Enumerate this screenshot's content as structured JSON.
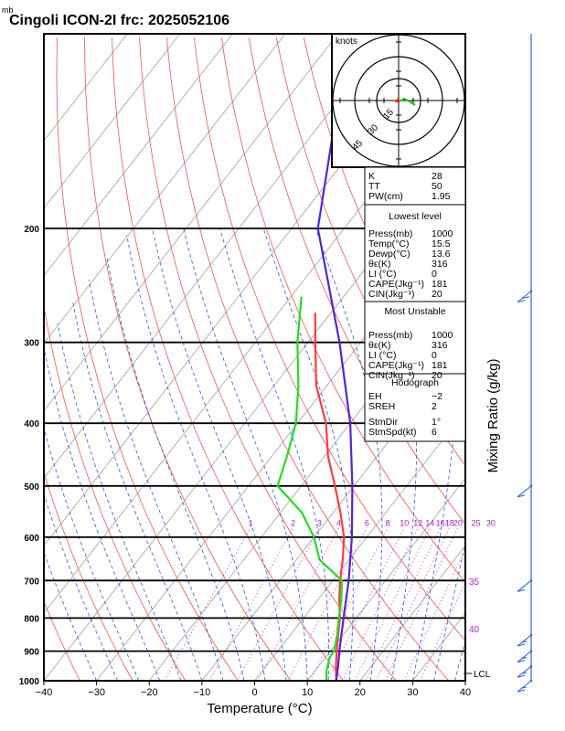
{
  "header": {
    "unit_label": "mb",
    "title": "Cingoli ICON-2I frc: 2025052106"
  },
  "chart_data": {
    "type": "skew-t",
    "title": "Cingoli ICON-2I frc: 2025052106",
    "xlabel": "Temperature (°C)",
    "ylabel_right": "Mixing Ratio (g/kg)",
    "xlim": [
      -40,
      40
    ],
    "x_ticks": [
      "−40",
      "−30",
      "−20",
      "−10",
      "0",
      "10",
      "20",
      "30",
      "40"
    ],
    "p_levels": [
      1000,
      900,
      800,
      700,
      600,
      500,
      400,
      300,
      200
    ],
    "p_labels": [
      "1000",
      "900",
      "800",
      "700",
      "600",
      "500",
      "400",
      "300",
      "200"
    ],
    "mixing_ratio_labels": [
      "1",
      "2",
      "3",
      "4",
      "6",
      "8",
      "10",
      "12",
      "14",
      "16",
      "18",
      "20",
      "25",
      "30"
    ],
    "height_labels": [
      "35",
      "40"
    ],
    "lcl_label": "LCL",
    "series": [
      {
        "name": "Temperature",
        "color": "#ff3c3c",
        "points": [
          [
            1000,
            15.5
          ],
          [
            950,
            13.3
          ],
          [
            900,
            11.2
          ],
          [
            850,
            9.1
          ],
          [
            800,
            6.9
          ],
          [
            750,
            4.1
          ],
          [
            700,
            1.4
          ],
          [
            650,
            -1.2
          ],
          [
            600,
            -4.3
          ],
          [
            550,
            -8.6
          ],
          [
            500,
            -13.6
          ],
          [
            450,
            -19.3
          ],
          [
            400,
            -24.6
          ],
          [
            350,
            -32.0
          ],
          [
            300,
            -38.6
          ],
          [
            270,
            -43.0
          ]
        ]
      },
      {
        "name": "Dewpoint",
        "color": "#22dd22",
        "points": [
          [
            1000,
            13.6
          ],
          [
            960,
            12.0
          ],
          [
            920,
            10.8
          ],
          [
            900,
            10.7
          ],
          [
            850,
            8.9
          ],
          [
            800,
            6.7
          ],
          [
            750,
            4.5
          ],
          [
            700,
            1.7
          ],
          [
            650,
            -5.6
          ],
          [
            600,
            -10.0
          ],
          [
            550,
            -15.9
          ],
          [
            500,
            -24.5
          ],
          [
            450,
            -27.1
          ],
          [
            400,
            -30.3
          ],
          [
            350,
            -35.4
          ],
          [
            300,
            -42.0
          ],
          [
            255,
            -48.0
          ]
        ]
      },
      {
        "name": "Parcel",
        "color": "#5522dd",
        "points": [
          [
            1000,
            15.5
          ],
          [
            950,
            13.7
          ],
          [
            900,
            11.7
          ],
          [
            850,
            9.7
          ],
          [
            800,
            7.6
          ],
          [
            700,
            3.0
          ],
          [
            600,
            -2.8
          ],
          [
            500,
            -10.3
          ],
          [
            400,
            -20.0
          ],
          [
            300,
            -34.0
          ],
          [
            200,
            -55.0
          ],
          [
            100,
            -78.0
          ]
        ]
      }
    ],
    "hodograph": {
      "unit_label": "knots",
      "ring_labels": [
        "15",
        "30",
        "45"
      ],
      "ring_values": [
        15,
        30,
        45
      ]
    },
    "wind_barbs": [
      {
        "p": 1000,
        "speed_kt": 15
      },
      {
        "p": 950,
        "speed_kt": 15
      },
      {
        "p": 900,
        "speed_kt": 15
      },
      {
        "p": 850,
        "speed_kt": 15
      },
      {
        "p": 700,
        "speed_kt": 10
      },
      {
        "p": 500,
        "speed_kt": 10
      },
      {
        "p": 250,
        "speed_kt": 20
      }
    ]
  },
  "indices": {
    "general": [
      {
        "label": "K",
        "value": "28"
      },
      {
        "label": "TT",
        "value": "50"
      },
      {
        "label": "PW(cm)",
        "value": "1.95"
      }
    ],
    "lowest_title": "Lowest level",
    "lowest": [
      {
        "label": "Press(mb)",
        "value": "1000"
      },
      {
        "label": "Temp(°C)",
        "value": "15.5"
      },
      {
        "label": "Dewp(°C)",
        "value": "13.6"
      },
      {
        "label": "θε(K)",
        "value": "316"
      },
      {
        "label": "LI (°C)",
        "value": "0"
      },
      {
        "label": "CAPE(Jkg⁻¹)",
        "value": "181"
      },
      {
        "label": "CIN(Jkg⁻¹)",
        "value": "20"
      }
    ],
    "unstable_title": "Most Unstable",
    "unstable": [
      {
        "label": "Press(mb)",
        "value": "1000"
      },
      {
        "label": "θε(K)",
        "value": "316"
      },
      {
        "label": "LI (°C)",
        "value": "0"
      },
      {
        "label": "CAPE(Jkg⁻¹)",
        "value": "181"
      },
      {
        "label": "CIN(Jkg⁻¹)",
        "value": "20"
      }
    ],
    "hodo_title": "Hodograph",
    "hodo": [
      {
        "label": "EH",
        "value": "−2"
      },
      {
        "label": "SREH",
        "value": "2"
      },
      {
        "label": "StmDir",
        "value": "1°"
      },
      {
        "label": "StmSpd(kt)",
        "value": "6"
      }
    ]
  }
}
